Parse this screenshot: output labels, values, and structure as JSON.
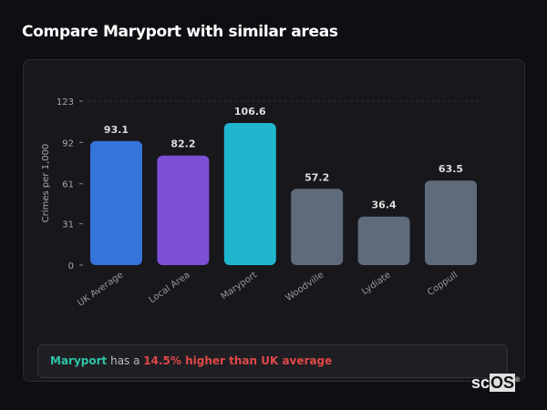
{
  "header": {
    "title": "Compare Maryport with similar areas"
  },
  "chart_data": {
    "type": "bar",
    "title": "",
    "xlabel": "",
    "ylabel": "Crimes per 1,000",
    "ylim": [
      0,
      123
    ],
    "yticks": [
      0,
      31,
      61,
      92,
      123
    ],
    "categories": [
      "UK Average",
      "Local Area",
      "Maryport",
      "Woodville",
      "Lydiate",
      "Coppull"
    ],
    "values": [
      93.1,
      82.2,
      106.6,
      57.2,
      36.4,
      63.5
    ],
    "data_labels": [
      "93.1",
      "82.2",
      "106.6",
      "57.2",
      "36.4",
      "63.5"
    ],
    "colors": [
      "#3574d9",
      "#7b4fd6",
      "#21b6cf",
      "#5f6a7a",
      "#5f6a7a",
      "#5f6a7a"
    ],
    "grid": false
  },
  "summary": {
    "area": "Maryport",
    "middle": " has a ",
    "comparison": "14.5% higher than UK average"
  },
  "logo": {
    "text_a": "sc",
    "text_b": "OS",
    "mark": "®"
  }
}
